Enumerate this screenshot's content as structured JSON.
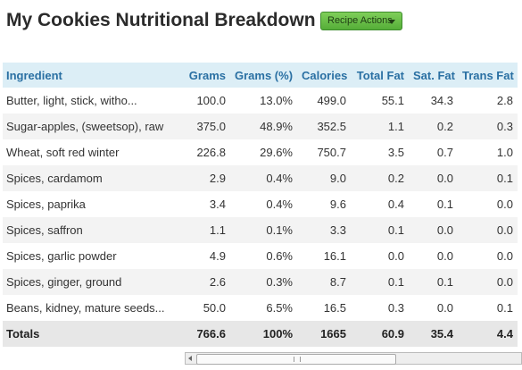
{
  "header": {
    "title": "My Cookies Nutritional Breakdown",
    "button": "Recipe Actions"
  },
  "table": {
    "columns": [
      "Ingredient",
      "Grams",
      "Grams (%)",
      "Calories",
      "Total Fat",
      "Sat. Fat",
      "Trans Fat"
    ],
    "rows": [
      [
        "Butter, light, stick, witho...",
        "100.0",
        "13.0%",
        "499.0",
        "55.1",
        "34.3",
        "2.8"
      ],
      [
        "Sugar-apples, (sweetsop), raw",
        "375.0",
        "48.9%",
        "352.5",
        "1.1",
        "0.2",
        "0.3"
      ],
      [
        "Wheat, soft red winter",
        "226.8",
        "29.6%",
        "750.7",
        "3.5",
        "0.7",
        "1.0"
      ],
      [
        "Spices, cardamom",
        "2.9",
        "0.4%",
        "9.0",
        "0.2",
        "0.0",
        "0.1"
      ],
      [
        "Spices, paprika",
        "3.4",
        "0.4%",
        "9.6",
        "0.4",
        "0.1",
        "0.0"
      ],
      [
        "Spices, saffron",
        "1.1",
        "0.1%",
        "3.3",
        "0.1",
        "0.0",
        "0.0"
      ],
      [
        "Spices, garlic powder",
        "4.9",
        "0.6%",
        "16.1",
        "0.0",
        "0.0",
        "0.0"
      ],
      [
        "Spices, ginger, ground",
        "2.6",
        "0.3%",
        "8.7",
        "0.1",
        "0.1",
        "0.0"
      ],
      [
        "Beans, kidney, mature seeds...",
        "50.0",
        "6.5%",
        "16.5",
        "0.3",
        "0.0",
        "0.1"
      ]
    ],
    "totals": [
      "Totals",
      "766.6",
      "100%",
      "1665",
      "60.9",
      "35.4",
      "4.4"
    ]
  }
}
